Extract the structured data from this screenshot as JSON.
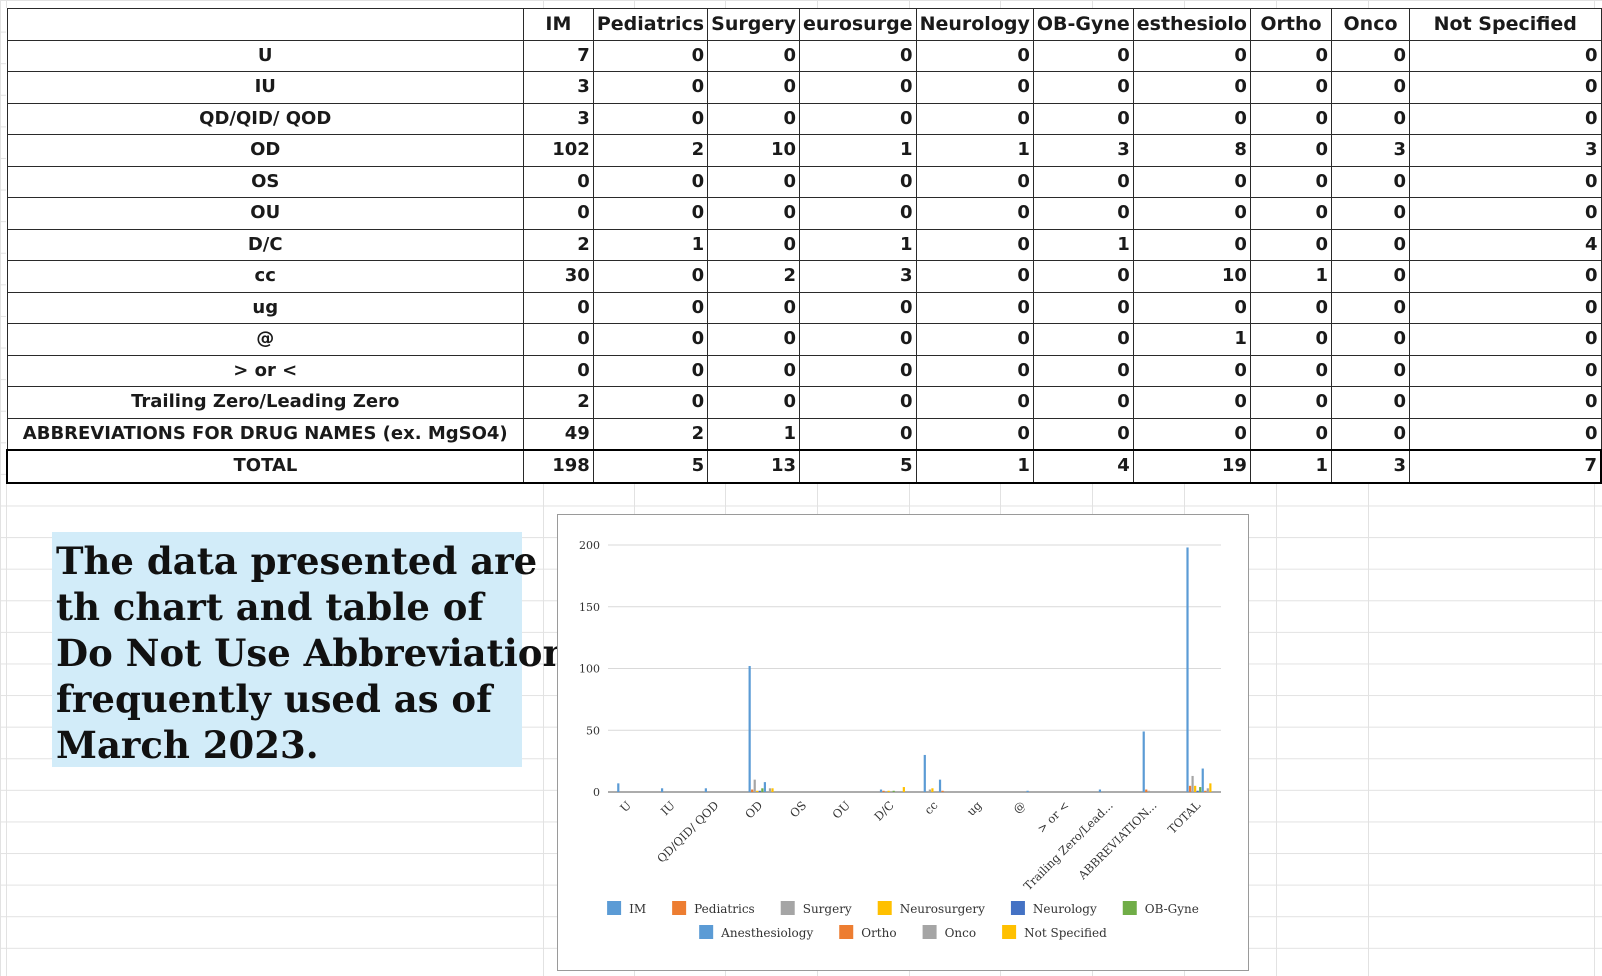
{
  "table": {
    "headers": [
      "",
      "IM",
      "Pediatrics",
      "Surgery",
      "eurosurge",
      "Neurology",
      "OB-Gyne",
      "esthesiolo",
      "Ortho",
      "Onco",
      "Not Specified"
    ],
    "rows": [
      {
        "label": "U",
        "values": [
          "7",
          "0",
          "0",
          "0",
          "0",
          "0",
          "0",
          "0",
          "0",
          "0"
        ]
      },
      {
        "label": "IU",
        "values": [
          "3",
          "0",
          "0",
          "0",
          "0",
          "0",
          "0",
          "0",
          "0",
          "0"
        ]
      },
      {
        "label": "QD/QID/ QOD",
        "values": [
          "3",
          "0",
          "0",
          "0",
          "0",
          "0",
          "0",
          "0",
          "0",
          "0"
        ]
      },
      {
        "label": "OD",
        "values": [
          "102",
          "2",
          "10",
          "1",
          "1",
          "3",
          "8",
          "0",
          "3",
          "3"
        ]
      },
      {
        "label": "OS",
        "values": [
          "0",
          "0",
          "0",
          "0",
          "0",
          "0",
          "0",
          "0",
          "0",
          "0"
        ]
      },
      {
        "label": "OU",
        "values": [
          "0",
          "0",
          "0",
          "0",
          "0",
          "0",
          "0",
          "0",
          "0",
          "0"
        ]
      },
      {
        "label": "D/C",
        "values": [
          "2",
          "1",
          "0",
          "1",
          "0",
          "1",
          "0",
          "0",
          "0",
          "4"
        ]
      },
      {
        "label": "cc",
        "values": [
          "30",
          "0",
          "2",
          "3",
          "0",
          "0",
          "10",
          "1",
          "0",
          "0"
        ]
      },
      {
        "label": "ug",
        "values": [
          "0",
          "0",
          "0",
          "0",
          "0",
          "0",
          "0",
          "0",
          "0",
          "0"
        ]
      },
      {
        "label": "@",
        "values": [
          "0",
          "0",
          "0",
          "0",
          "0",
          "0",
          "1",
          "0",
          "0",
          "0"
        ]
      },
      {
        "label": "> or <",
        "values": [
          "0",
          "0",
          "0",
          "0",
          "0",
          "0",
          "0",
          "0",
          "0",
          "0"
        ]
      },
      {
        "label": "Trailing Zero/Leading Zero",
        "values": [
          "2",
          "0",
          "0",
          "0",
          "0",
          "0",
          "0",
          "0",
          "0",
          "0"
        ]
      },
      {
        "label": "ABBREVIATIONS FOR DRUG NAMES (ex. MgSO4)",
        "values": [
          "49",
          "2",
          "1",
          "0",
          "0",
          "0",
          "0",
          "0",
          "0",
          "0"
        ]
      },
      {
        "label": "TOTAL",
        "values": [
          "198",
          "5",
          "13",
          "5",
          "1",
          "4",
          "19",
          "1",
          "3",
          "7"
        ]
      }
    ]
  },
  "note": {
    "lines": [
      "The data presented are",
      "th chart and table of",
      "Do Not Use Abbreviations",
      "frequently used as of",
      "March 2023."
    ]
  },
  "chart_data": {
    "type": "bar",
    "title": "",
    "xlabel": "",
    "ylabel": "",
    "ylim": [
      0,
      200
    ],
    "yticks": [
      0,
      50,
      100,
      150,
      200
    ],
    "grid": true,
    "legend_position": "bottom",
    "categories": [
      "U",
      "IU",
      "QD/QID/ QOD",
      "OD",
      "OS",
      "OU",
      "D/C",
      "cc",
      "ug",
      "@",
      "> or <",
      "Trailing Zero/Lead...",
      "ABBREVIATION...",
      "TOTAL"
    ],
    "series": [
      {
        "name": "IM",
        "color": "#5b9bd5",
        "values": [
          7,
          3,
          3,
          102,
          0,
          0,
          2,
          30,
          0,
          0,
          0,
          2,
          49,
          198
        ]
      },
      {
        "name": "Pediatrics",
        "color": "#ed7d31",
        "values": [
          0,
          0,
          0,
          2,
          0,
          0,
          1,
          0,
          0,
          0,
          0,
          0,
          2,
          5
        ]
      },
      {
        "name": "Surgery",
        "color": "#a5a5a5",
        "values": [
          0,
          0,
          0,
          10,
          0,
          0,
          0,
          2,
          0,
          0,
          0,
          0,
          1,
          13
        ]
      },
      {
        "name": "Neurosurgery",
        "color": "#ffc000",
        "values": [
          0,
          0,
          0,
          1,
          0,
          0,
          1,
          3,
          0,
          0,
          0,
          0,
          0,
          5
        ]
      },
      {
        "name": "Neurology",
        "color": "#4472c4",
        "values": [
          0,
          0,
          0,
          1,
          0,
          0,
          0,
          0,
          0,
          0,
          0,
          0,
          0,
          1
        ]
      },
      {
        "name": "OB-Gyne",
        "color": "#70ad47",
        "values": [
          0,
          0,
          0,
          3,
          0,
          0,
          1,
          0,
          0,
          0,
          0,
          0,
          0,
          4
        ]
      },
      {
        "name": "Anesthesiology",
        "color": "#5b9bd5",
        "values": [
          0,
          0,
          0,
          8,
          0,
          0,
          0,
          10,
          0,
          1,
          0,
          0,
          0,
          19
        ]
      },
      {
        "name": "Ortho",
        "color": "#ed7d31",
        "values": [
          0,
          0,
          0,
          0,
          0,
          0,
          0,
          1,
          0,
          0,
          0,
          0,
          0,
          1
        ]
      },
      {
        "name": "Onco",
        "color": "#a5a5a5",
        "values": [
          0,
          0,
          0,
          3,
          0,
          0,
          0,
          0,
          0,
          0,
          0,
          0,
          0,
          3
        ]
      },
      {
        "name": "Not Specified",
        "color": "#ffc000",
        "values": [
          0,
          0,
          0,
          3,
          0,
          0,
          4,
          0,
          0,
          0,
          0,
          0,
          0,
          7
        ]
      }
    ]
  }
}
